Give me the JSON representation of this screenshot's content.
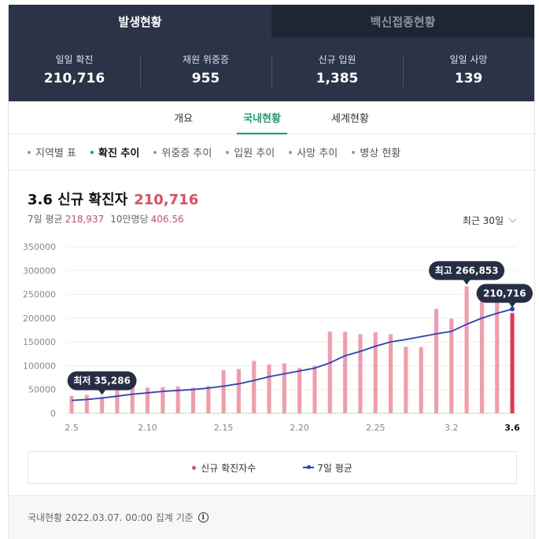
{
  "top_tabs": {
    "active": "발생현황",
    "inactive": "백신접종현황"
  },
  "stats": [
    {
      "label": "일일 확진",
      "value": "210,716"
    },
    {
      "label": "재원 위중증",
      "value": "955"
    },
    {
      "label": "신규 입원",
      "value": "1,385"
    },
    {
      "label": "일일 사망",
      "value": "139"
    }
  ],
  "nav_tabs": [
    "개요",
    "국내현황",
    "세계현황"
  ],
  "sub_tabs": [
    "지역별 표",
    "확진 추이",
    "위중증 추이",
    "입원 추이",
    "사망 추이",
    "병상 현황"
  ],
  "headline": {
    "title": "3.6 신규 확진자",
    "value": "210,716"
  },
  "subline": {
    "avg_label": "7일 평균",
    "avg_value": "218,937",
    "per_label": "10만명당",
    "per_value": "406.56"
  },
  "range_select": "최근 30일",
  "legend": {
    "bar": "신규 확진자수",
    "line": "7일 평균"
  },
  "footer": "국내현황 2022.03.07. 00:00 집계 기준",
  "colors": {
    "bar": "#f49aa8",
    "bar_latest": "#e8354f",
    "line": "#2244cc",
    "tooltip": "#252e44",
    "accent_green": "#1aa266"
  },
  "chart_data": {
    "type": "bar",
    "x": [
      "2.5",
      "2.6",
      "2.7",
      "2.8",
      "2.9",
      "2.10",
      "2.11",
      "2.12",
      "2.13",
      "2.14",
      "2.15",
      "2.16",
      "2.17",
      "2.18",
      "2.19",
      "2.20",
      "2.21",
      "2.22",
      "2.23",
      "2.24",
      "2.25",
      "2.26",
      "2.27",
      "2.28",
      "3.1",
      "3.2",
      "3.3",
      "3.4",
      "3.5",
      "3.6"
    ],
    "tick_labels": [
      "2.5",
      "2.10",
      "2.15",
      "2.20",
      "2.25",
      "3.2",
      "3.6"
    ],
    "series": [
      {
        "name": "신규 확진자수",
        "type": "bar",
        "values": [
          36345,
          38691,
          35286,
          49567,
          54121,
          53920,
          54941,
          56431,
          53926,
          57177,
          90443,
          93135,
          109831,
          102211,
          104829,
          95362,
          99573,
          171452,
          171271,
          166209,
          170016,
          165890,
          139626,
          139253,
          219241,
          198803,
          266853,
          254327,
          254327,
          210716
        ]
      },
      {
        "name": "7일 평균",
        "type": "line",
        "values": [
          27000,
          29000,
          32000,
          36000,
          40000,
          43000,
          46000,
          48000,
          50000,
          53000,
          57000,
          62000,
          69000,
          77000,
          83000,
          89000,
          95000,
          106000,
          121000,
          130000,
          141000,
          150000,
          155000,
          161000,
          167000,
          172000,
          187000,
          200000,
          210000,
          218937
        ]
      }
    ],
    "ylim": [
      0,
      350000
    ],
    "yticks": [
      0,
      50000,
      100000,
      150000,
      200000,
      250000,
      300000,
      350000
    ],
    "annotations": [
      {
        "label": "최저 35,286",
        "index": 2
      },
      {
        "label": "최고 266,853",
        "index": 26
      },
      {
        "label": "210,716",
        "index": 29
      }
    ]
  }
}
